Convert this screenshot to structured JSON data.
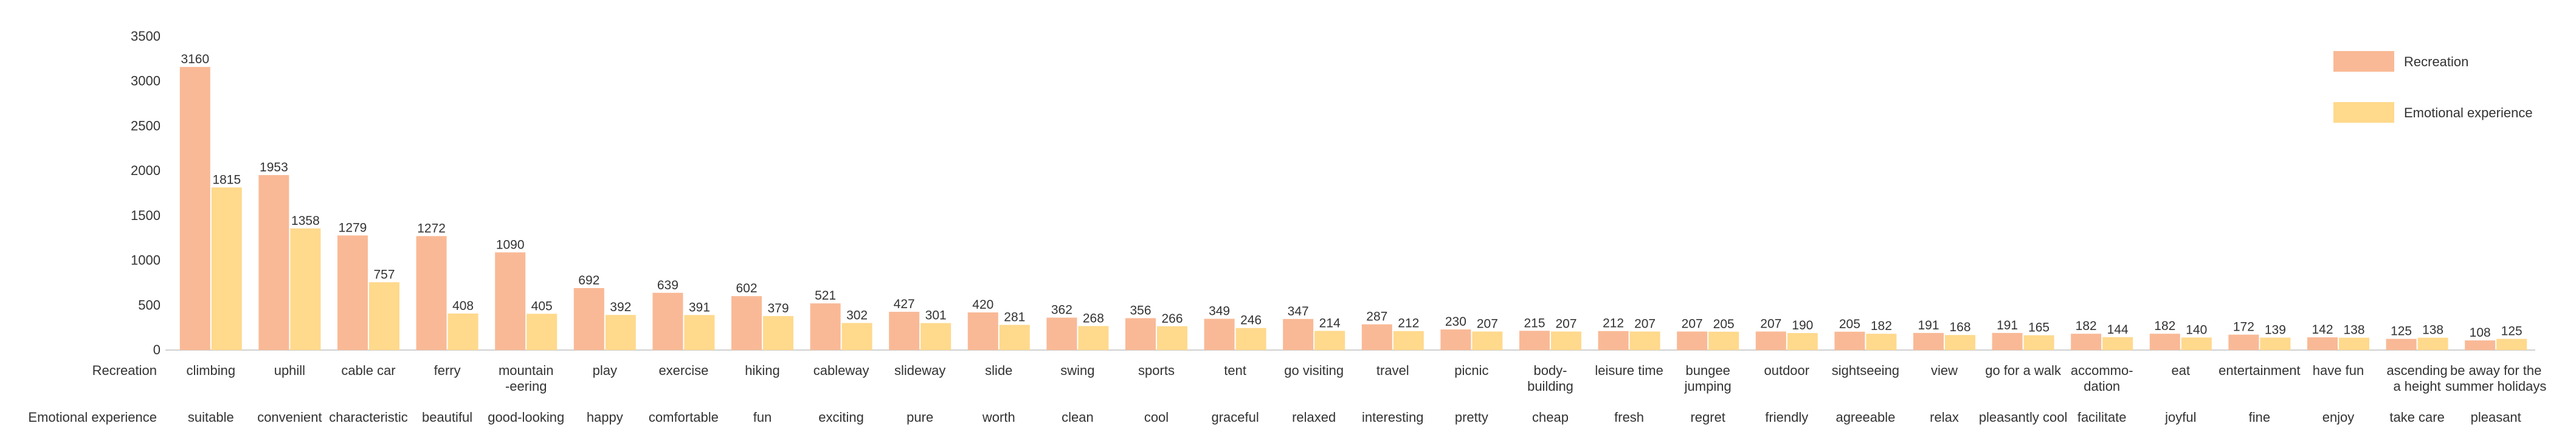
{
  "chart_data": {
    "type": "bar",
    "title": "",
    "xlabel": "",
    "ylabel": "",
    "ylim": [
      0,
      3500
    ],
    "yticks": [
      0,
      500,
      1000,
      1500,
      2000,
      2500,
      3000,
      3500
    ],
    "grid": false,
    "legend_position": "top-right",
    "row_labels": [
      "Recreation",
      "Emotional experience"
    ],
    "categories": [
      "climbing",
      "uphill",
      "cable car",
      "ferry",
      "mountain\n-eering",
      "play",
      "exercise",
      "hiking",
      "cableway",
      "slideway",
      "slide",
      "swing",
      "sports",
      "tent",
      "go visiting",
      "travel",
      "picnic",
      "body-\nbuilding",
      "leisure time",
      "bungee\njumping",
      "outdoor",
      "sightseeing",
      "view",
      "go for a walk",
      "accommo-\ndation",
      "eat",
      "entertainment",
      "have fun",
      "ascending\na height",
      "be away for the\nsummer holidays"
    ],
    "categories2": [
      "suitable",
      "convenient",
      "characteristic",
      "beautiful",
      "good-looking",
      "happy",
      "comfortable",
      "fun",
      "exciting",
      "pure",
      "worth",
      "clean",
      "cool",
      "graceful",
      "relaxed",
      "interesting",
      "pretty",
      "cheap",
      "fresh",
      "regret",
      "friendly",
      "agreeable",
      "relax",
      "pleasantly cool",
      "facilitate",
      "joyful",
      "fine",
      "enjoy",
      "take care",
      "pleasant"
    ],
    "series": [
      {
        "name": "Recreation",
        "color": "#F9B996",
        "values": [
          3160,
          1953,
          1279,
          1272,
          1090,
          692,
          639,
          602,
          521,
          427,
          420,
          362,
          356,
          349,
          347,
          287,
          230,
          215,
          212,
          207,
          207,
          205,
          191,
          191,
          182,
          182,
          172,
          142,
          125,
          108
        ]
      },
      {
        "name": "Emotional experience",
        "color": "#FFD98C",
        "values": [
          1815,
          1358,
          757,
          408,
          405,
          392,
          391,
          379,
          302,
          301,
          281,
          268,
          266,
          246,
          214,
          212,
          207,
          207,
          207,
          205,
          190,
          182,
          168,
          165,
          144,
          140,
          139,
          138,
          138,
          125
        ]
      }
    ]
  }
}
